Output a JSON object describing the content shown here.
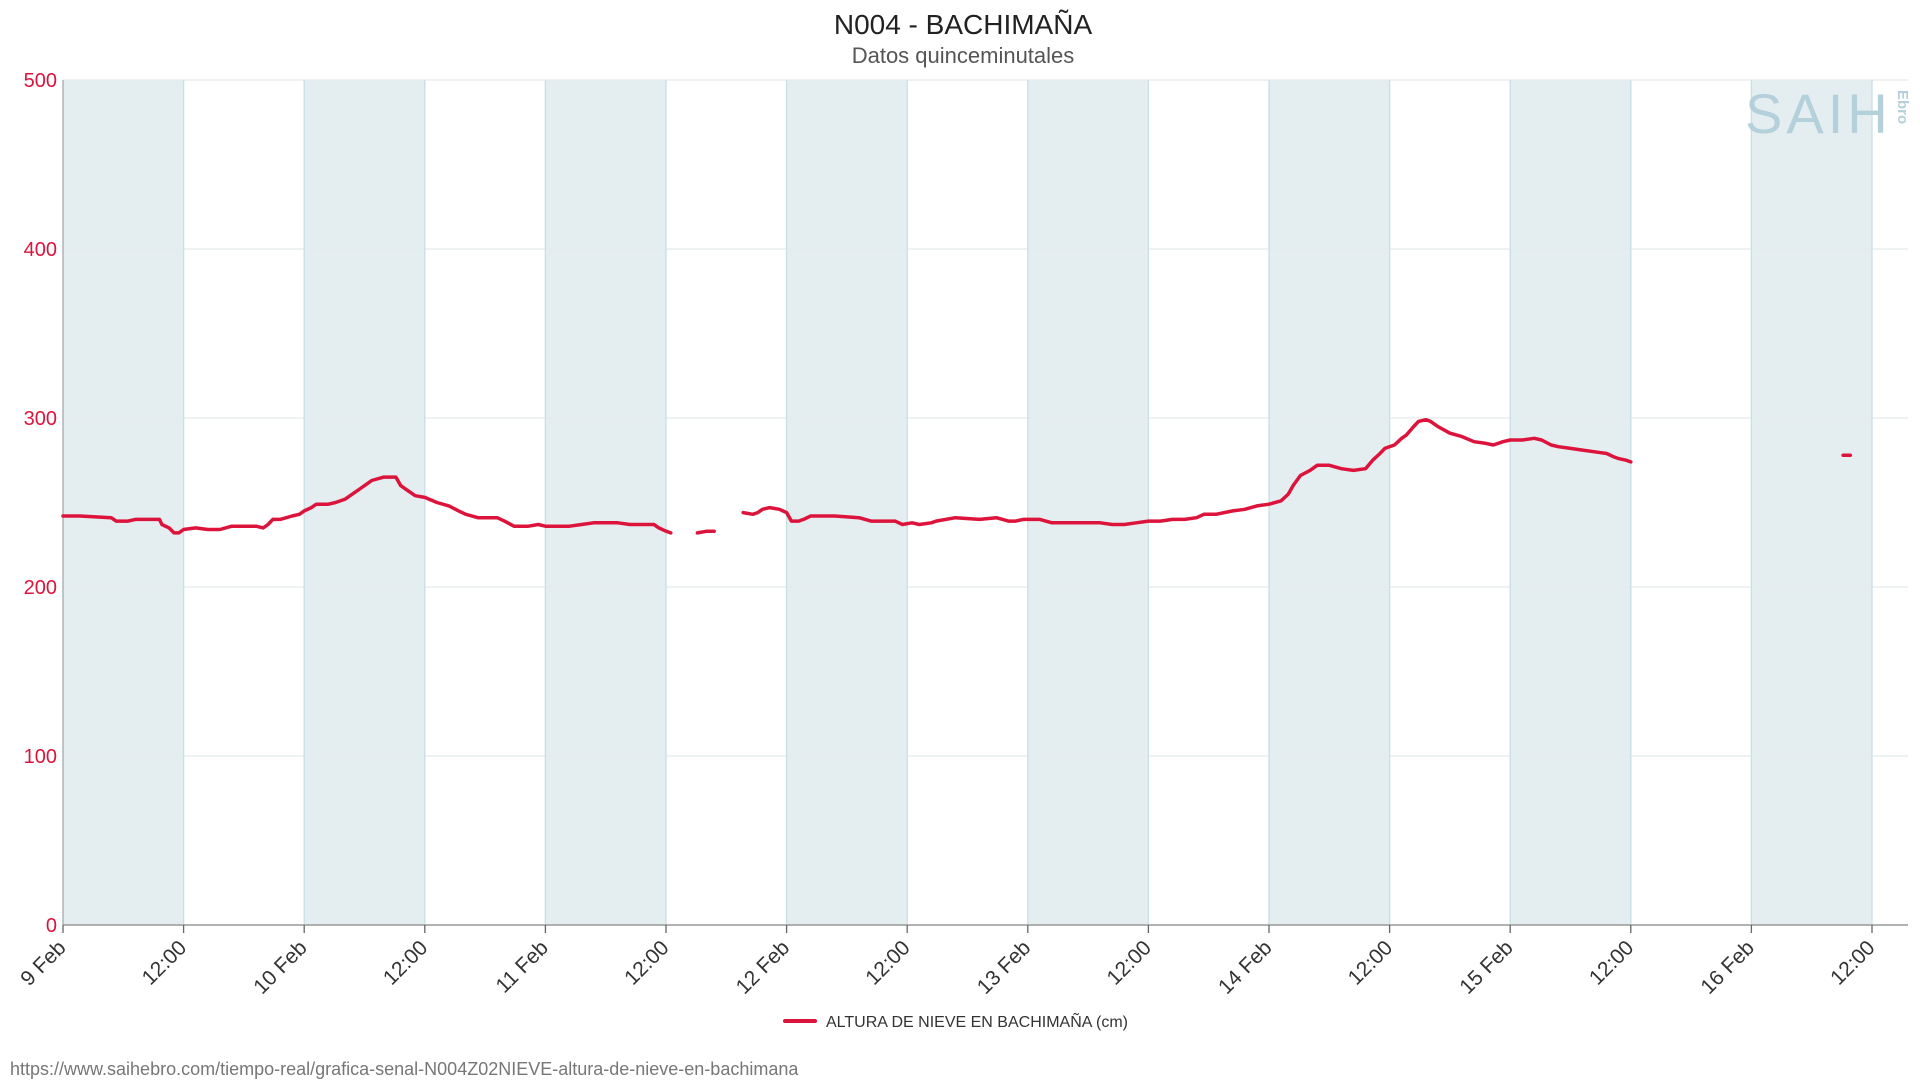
{
  "colors": {
    "series": "#dc143c",
    "band": "#e4eef1",
    "grid_v": "#c8dfe3",
    "grid_h": "#e3eaec",
    "axis_text": "#dc143c",
    "logo": "#b4d0da"
  },
  "logo": {
    "main": "SAIH",
    "sub": "Ebro"
  },
  "footer": {
    "url": "https://www.saihebro.com/tiempo-real/grafica-senal-N004Z02NIEVE-altura-de-nieve-en-bachimana"
  },
  "chart_data": {
    "type": "line",
    "title": "N004 - BACHIMAÑA",
    "subtitle": "Datos quinceminutales",
    "xlabel": "",
    "ylabel": "",
    "ylim": [
      0,
      500
    ],
    "yticks": [
      0,
      100,
      200,
      300,
      400,
      500
    ],
    "xlim": [
      0,
      7.75
    ],
    "x_unit": "days since 9 Feb 00:00",
    "xticks": [
      {
        "x": 0,
        "label": "9 Feb"
      },
      {
        "x": 0.5,
        "label": "12:00"
      },
      {
        "x": 1,
        "label": "10 Feb"
      },
      {
        "x": 1.5,
        "label": "12:00"
      },
      {
        "x": 2,
        "label": "11 Feb"
      },
      {
        "x": 2.5,
        "label": "12:00"
      },
      {
        "x": 3,
        "label": "12 Feb"
      },
      {
        "x": 3.5,
        "label": "12:00"
      },
      {
        "x": 4,
        "label": "13 Feb"
      },
      {
        "x": 4.5,
        "label": "12:00"
      },
      {
        "x": 5,
        "label": "14 Feb"
      },
      {
        "x": 5.5,
        "label": "12:00"
      },
      {
        "x": 6,
        "label": "15 Feb"
      },
      {
        "x": 6.5,
        "label": "12:00"
      },
      {
        "x": 7,
        "label": "16 Feb"
      },
      {
        "x": 7.5,
        "label": "12:00"
      }
    ],
    "shaded_bands": [
      [
        0,
        0.5
      ],
      [
        1,
        1.5
      ],
      [
        2,
        2.5
      ],
      [
        3,
        3.5
      ],
      [
        4,
        4.5
      ],
      [
        5,
        5.5
      ],
      [
        6,
        6.5
      ],
      [
        7,
        7.5
      ]
    ],
    "grid": true,
    "legend_position": "bottom-center",
    "series": [
      {
        "name": "ALTURA DE NIEVE EN BACHIMAÑA (cm)",
        "segments": [
          [
            [
              0.0,
              242
            ],
            [
              0.07,
              242
            ],
            [
              0.2,
              241
            ],
            [
              0.22,
              239
            ],
            [
              0.27,
              239
            ],
            [
              0.3,
              240
            ],
            [
              0.4,
              240
            ],
            [
              0.41,
              237
            ],
            [
              0.44,
              235
            ],
            [
              0.46,
              232
            ],
            [
              0.48,
              232
            ],
            [
              0.5,
              234
            ],
            [
              0.55,
              235
            ],
            [
              0.6,
              234
            ],
            [
              0.65,
              234
            ],
            [
              0.7,
              236
            ],
            [
              0.78,
              236
            ],
            [
              0.8,
              236
            ],
            [
              0.83,
              235
            ],
            [
              0.85,
              237
            ],
            [
              0.87,
              240
            ],
            [
              0.9,
              240
            ],
            [
              0.95,
              242
            ],
            [
              0.98,
              243
            ],
            [
              1.0,
              245
            ],
            [
              1.03,
              247
            ],
            [
              1.05,
              249
            ],
            [
              1.1,
              249
            ],
            [
              1.13,
              250
            ],
            [
              1.17,
              252
            ],
            [
              1.2,
              255
            ],
            [
              1.23,
              258
            ],
            [
              1.26,
              261
            ],
            [
              1.28,
              263
            ],
            [
              1.33,
              265
            ],
            [
              1.38,
              265
            ],
            [
              1.4,
              260
            ],
            [
              1.43,
              257
            ],
            [
              1.46,
              254
            ],
            [
              1.5,
              253
            ],
            [
              1.55,
              250
            ],
            [
              1.6,
              248
            ],
            [
              1.64,
              245
            ],
            [
              1.67,
              243
            ],
            [
              1.72,
              241
            ],
            [
              1.8,
              241
            ],
            [
              1.83,
              239
            ],
            [
              1.87,
              236
            ],
            [
              1.93,
              236
            ],
            [
              1.97,
              237
            ],
            [
              2.0,
              236
            ],
            [
              2.1,
              236
            ],
            [
              2.15,
              237
            ],
            [
              2.2,
              238
            ],
            [
              2.3,
              238
            ],
            [
              2.35,
              237
            ],
            [
              2.45,
              237
            ],
            [
              2.47,
              235
            ],
            [
              2.5,
              233
            ],
            [
              2.52,
              232
            ]
          ],
          [
            [
              2.63,
              232
            ],
            [
              2.67,
              233
            ],
            [
              2.7,
              233
            ]
          ],
          [
            [
              2.82,
              244
            ],
            [
              2.86,
              243
            ],
            [
              2.88,
              244
            ],
            [
              2.9,
              246
            ],
            [
              2.93,
              247
            ],
            [
              2.97,
              246
            ],
            [
              3.0,
              244
            ],
            [
              3.02,
              239
            ],
            [
              3.05,
              239
            ],
            [
              3.07,
              240
            ],
            [
              3.1,
              242
            ],
            [
              3.2,
              242
            ],
            [
              3.3,
              241
            ],
            [
              3.35,
              239
            ],
            [
              3.4,
              239
            ],
            [
              3.45,
              239
            ],
            [
              3.48,
              237
            ],
            [
              3.52,
              238
            ],
            [
              3.55,
              237
            ],
            [
              3.6,
              238
            ],
            [
              3.62,
              239
            ],
            [
              3.7,
              241
            ],
            [
              3.8,
              240
            ],
            [
              3.87,
              241
            ],
            [
              3.92,
              239
            ],
            [
              3.95,
              239
            ],
            [
              3.98,
              240
            ],
            [
              4.05,
              240
            ],
            [
              4.1,
              238
            ],
            [
              4.2,
              238
            ],
            [
              4.3,
              238
            ],
            [
              4.35,
              237
            ],
            [
              4.4,
              237
            ],
            [
              4.45,
              238
            ],
            [
              4.5,
              239
            ],
            [
              4.55,
              239
            ],
            [
              4.6,
              240
            ],
            [
              4.65,
              240
            ],
            [
              4.7,
              241
            ],
            [
              4.73,
              243
            ],
            [
              4.78,
              243
            ],
            [
              4.85,
              245
            ],
            [
              4.9,
              246
            ],
            [
              4.95,
              248
            ],
            [
              5.0,
              249
            ],
            [
              5.05,
              251
            ],
            [
              5.08,
              255
            ],
            [
              5.1,
              260
            ],
            [
              5.13,
              266
            ],
            [
              5.17,
              269
            ],
            [
              5.2,
              272
            ],
            [
              5.25,
              272
            ],
            [
              5.3,
              270
            ],
            [
              5.35,
              269
            ],
            [
              5.4,
              270
            ],
            [
              5.43,
              275
            ],
            [
              5.46,
              279
            ],
            [
              5.48,
              282
            ],
            [
              5.52,
              284
            ],
            [
              5.55,
              288
            ],
            [
              5.57,
              290
            ],
            [
              5.6,
              295
            ],
            [
              5.62,
              298
            ],
            [
              5.65,
              299
            ],
            [
              5.67,
              298
            ],
            [
              5.7,
              295
            ],
            [
              5.75,
              291
            ],
            [
              5.8,
              289
            ],
            [
              5.85,
              286
            ],
            [
              5.9,
              285
            ],
            [
              5.93,
              284
            ],
            [
              5.97,
              286
            ],
            [
              6.0,
              287
            ],
            [
              6.05,
              287
            ],
            [
              6.1,
              288
            ],
            [
              6.13,
              287
            ],
            [
              6.17,
              284
            ],
            [
              6.2,
              283
            ],
            [
              6.25,
              282
            ],
            [
              6.3,
              281
            ],
            [
              6.35,
              280
            ],
            [
              6.4,
              279
            ],
            [
              6.43,
              277
            ],
            [
              6.45,
              276
            ],
            [
              6.48,
              275
            ],
            [
              6.5,
              274
            ]
          ],
          [
            [
              7.38,
              278
            ],
            [
              7.41,
              278
            ]
          ]
        ]
      }
    ]
  }
}
